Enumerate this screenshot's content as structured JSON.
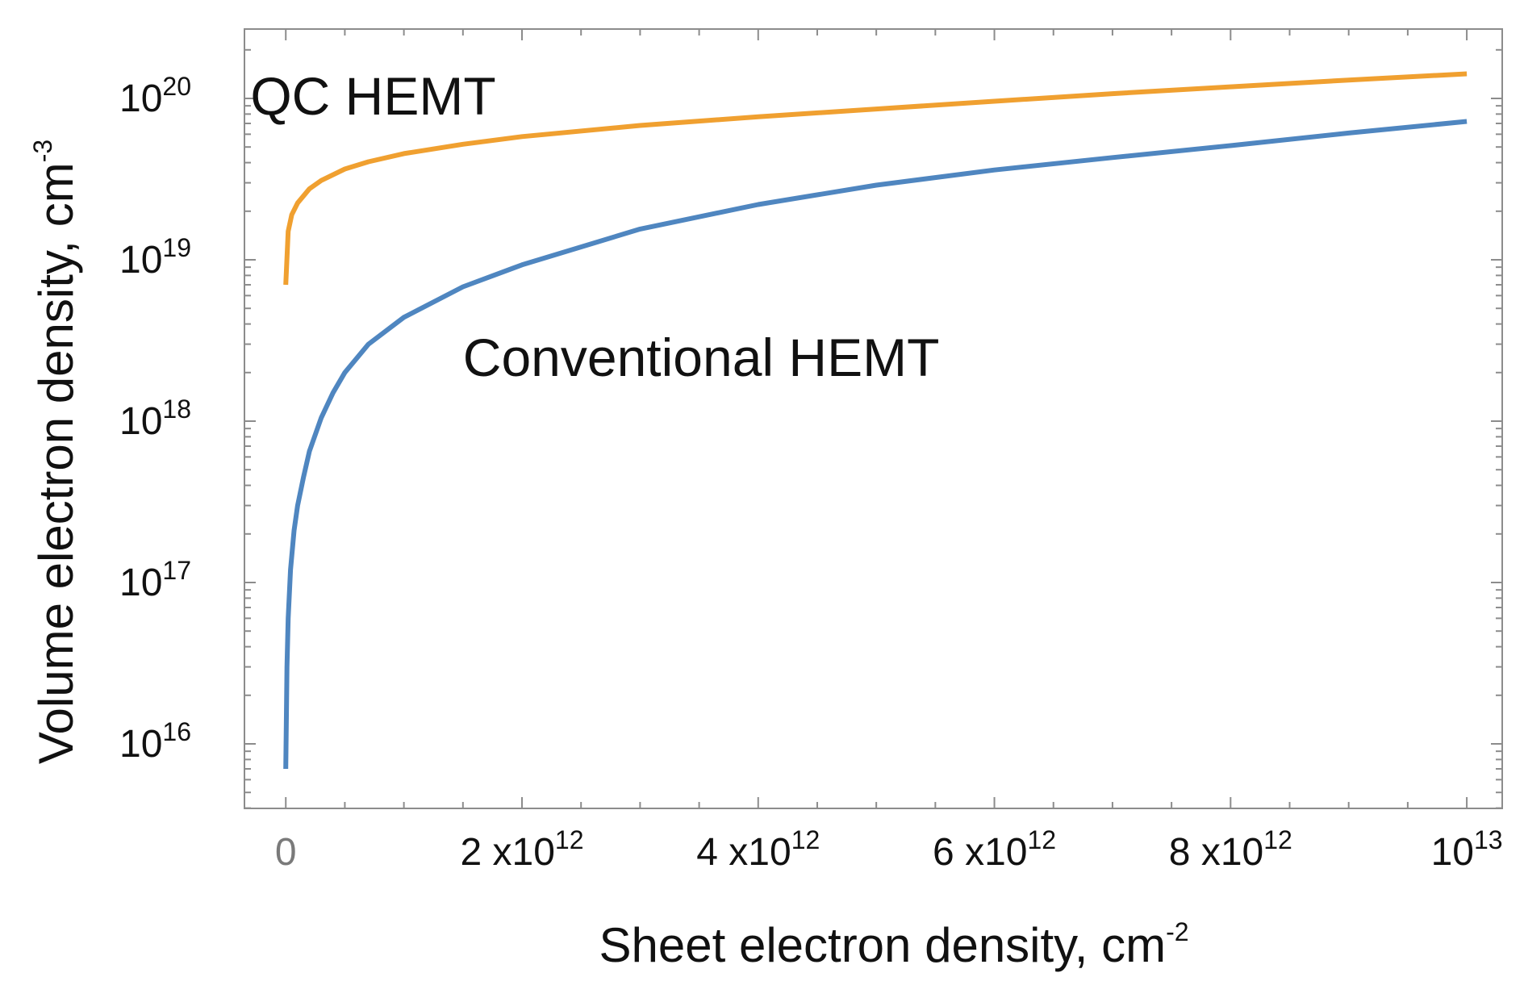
{
  "chart_data": {
    "type": "line",
    "scale": {
      "x": "linear",
      "y": "log10"
    },
    "xlim": [
      -350000000000.0,
      10300000000000.0
    ],
    "ylim_log10": [
      15.6,
      20.43
    ],
    "x_ticks": [
      {
        "value": 0,
        "base": "0",
        "exp": ""
      },
      {
        "value": 2000000000000.0,
        "base": "2 x10",
        "exp": "12"
      },
      {
        "value": 4000000000000.0,
        "base": "4 x10",
        "exp": "12"
      },
      {
        "value": 6000000000000.0,
        "base": "6 x10",
        "exp": "12"
      },
      {
        "value": 8000000000000.0,
        "base": "8 x10",
        "exp": "12"
      },
      {
        "value": 10000000000000.0,
        "base": "10",
        "exp": "13"
      }
    ],
    "x_minor_step": 500000000000.0,
    "y_ticks": [
      {
        "log": 16,
        "base": "10",
        "exp": "16"
      },
      {
        "log": 17,
        "base": "10",
        "exp": "17"
      },
      {
        "log": 18,
        "base": "10",
        "exp": "18"
      },
      {
        "log": 19,
        "base": "10",
        "exp": "19"
      },
      {
        "log": 20,
        "base": "10",
        "exp": "20"
      }
    ],
    "xlabel": {
      "text": "Sheet electron density,  cm",
      "sup": "-2"
    },
    "ylabel": {
      "text": "Volume electron density,  cm",
      "sup": "-3"
    },
    "series": [
      {
        "name": "QC HEMT",
        "color": "#f0a030",
        "x": [
          0,
          20000000000.0,
          50000000000.0,
          100000000000.0,
          200000000000.0,
          300000000000.0,
          500000000000.0,
          700000000000.0,
          1000000000000.0,
          1500000000000.0,
          2000000000000.0,
          3000000000000.0,
          4000000000000.0,
          5000000000000.0,
          6000000000000.0,
          7000000000000.0,
          8000000000000.0,
          9000000000000.0,
          10000000000000.0
        ],
        "y": [
          7e+18,
          1.5e+19,
          1.9e+19,
          2.25e+19,
          2.75e+19,
          3.1e+19,
          3.65e+19,
          4.05e+19,
          4.55e+19,
          5.2e+19,
          5.8e+19,
          6.8e+19,
          7.7e+19,
          8.6e+19,
          9.6e+19,
          1.07e+20,
          1.18e+20,
          1.3e+20,
          1.42e+20
        ]
      },
      {
        "name": "Conventional HEMT",
        "color": "#4f86c0",
        "x": [
          0,
          5000000000.0,
          10000000000.0,
          20000000000.0,
          40000000000.0,
          70000000000.0,
          100000000000.0,
          150000000000.0,
          200000000000.0,
          300000000000.0,
          400000000000.0,
          500000000000.0,
          700000000000.0,
          1000000000000.0,
          1500000000000.0,
          2000000000000.0,
          3000000000000.0,
          4000000000000.0,
          5000000000000.0,
          6000000000000.0,
          7000000000000.0,
          8000000000000.0,
          9000000000000.0,
          10000000000000.0
        ],
        "y": [
          7000000000000000.0,
          1.5e+16,
          3e+16,
          6e+16,
          1.2e+17,
          2.1e+17,
          3e+17,
          4.5e+17,
          6.5e+17,
          1.05e+18,
          1.5e+18,
          2e+18,
          3e+18,
          4.4e+18,
          6.8e+18,
          9.3e+18,
          1.55e+19,
          2.2e+19,
          2.9e+19,
          3.6e+19,
          4.3e+19,
          5.1e+19,
          6.1e+19,
          7.2e+19
        ]
      }
    ],
    "annotations": [
      {
        "text": "QC HEMT",
        "x": -300000000000.0,
        "y": 1e+20
      },
      {
        "text": "Conventional HEMT",
        "x": 1500000000000.0,
        "y": 2.4e+18
      }
    ]
  }
}
